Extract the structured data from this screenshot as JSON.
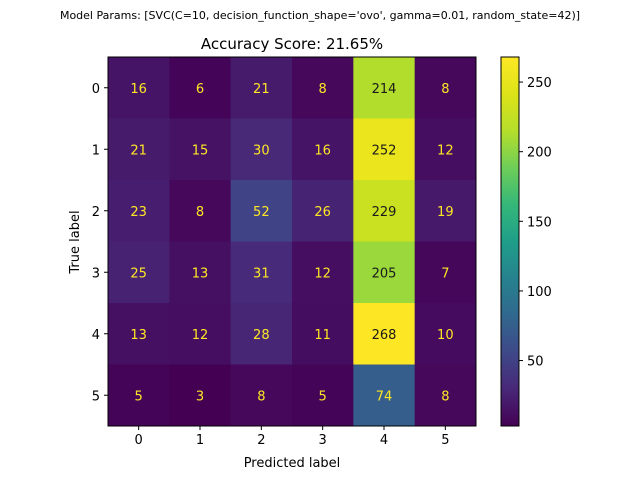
{
  "chart_data": {
    "type": "heatmap",
    "suptitle": "Model Params: [SVC(C=10, decision_function_shape='ovo', gamma=0.01, random_state=42)]",
    "title": "Accuracy Score: 21.65%",
    "xlabel": "Predicted label",
    "ylabel": "True label",
    "x_categories": [
      "0",
      "1",
      "2",
      "3",
      "4",
      "5"
    ],
    "y_categories": [
      "0",
      "1",
      "2",
      "3",
      "4",
      "5"
    ],
    "matrix": [
      [
        16,
        6,
        21,
        8,
        214,
        8
      ],
      [
        21,
        15,
        30,
        16,
        252,
        12
      ],
      [
        23,
        8,
        52,
        26,
        229,
        19
      ],
      [
        25,
        13,
        31,
        12,
        205,
        7
      ],
      [
        13,
        12,
        28,
        11,
        268,
        10
      ],
      [
        5,
        3,
        8,
        5,
        74,
        8
      ]
    ],
    "colormap": "viridis",
    "value_range": [
      3,
      268
    ],
    "colorbar_ticks": [
      50,
      100,
      150,
      200,
      250
    ],
    "label_colors": {
      "on_dark": "#fde725",
      "on_light": "#1a1a1a"
    }
  }
}
